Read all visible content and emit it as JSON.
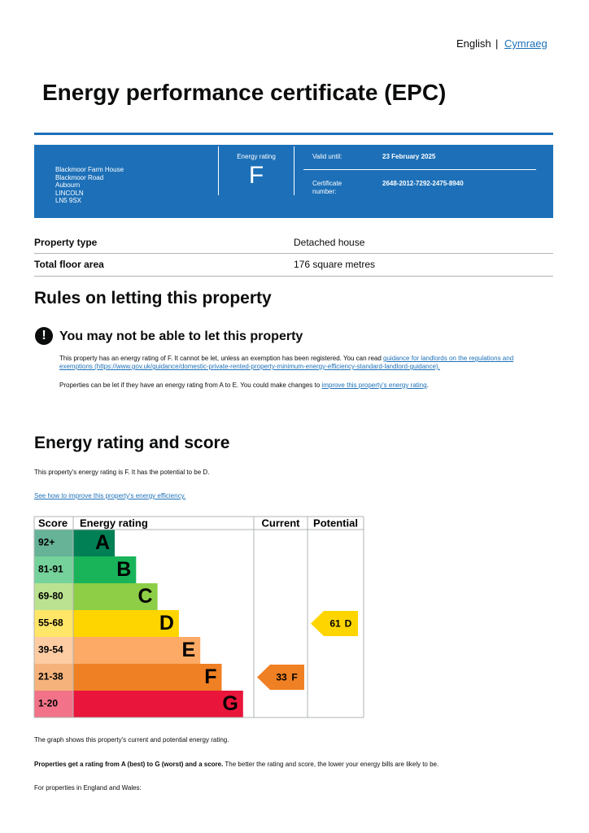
{
  "language": {
    "current": "English",
    "separator": "|",
    "other": "Cymraeg"
  },
  "header": {
    "title": "Energy performance certificate (EPC)"
  },
  "summary": {
    "address": [
      "Blackmoor Farm House",
      "Blackmoor Road",
      "Aubourn",
      "LINCOLN",
      "LN5 9SX"
    ],
    "rating_label": "Energy rating",
    "rating": "F",
    "valid_until_label": "Valid until:",
    "valid_until": "23 February 2025",
    "certificate_label": "Certificate number:",
    "certificate_number": "2648-2012-7292-2475-8940"
  },
  "properties": [
    [
      "Property type",
      "Detached house"
    ],
    [
      "Total floor area",
      "176 square metres"
    ]
  ],
  "letting": {
    "heading": "Rules on letting this property",
    "warning": "You may not be able to let this property",
    "paragraph1": [
      "This property has an energy rating of F. It cannot be let, unless an exemption has been registered. You can read ",
      "guidance for landlords on the regulations and exemptions",
      " (https://www.gov.uk/guidance/domestic-private-rented-property-minimum-energy-efficiency-standard-landlord-guidance)."
    ],
    "paragraph2": [
      "Properties can be let if they have an energy rating from A to E. You could make changes to ",
      "improve this property's energy rating",
      "."
    ]
  },
  "rating_section": {
    "heading": "Energy rating and score",
    "summary": "This property's energy rating is F. It has the potential to be D.",
    "link": "See how to improve this property's energy efficiency."
  },
  "chart": {
    "headers": [
      "Score",
      "Energy rating",
      "Current",
      "Potential"
    ],
    "bands": [
      {
        "score": "92+",
        "letter": "A",
        "color": "#008054"
      },
      {
        "score": "81-91",
        "letter": "B",
        "color": "#19b459"
      },
      {
        "score": "69-80",
        "letter": "C",
        "color": "#8dce46"
      },
      {
        "score": "55-68",
        "letter": "D",
        "color": "#ffd500"
      },
      {
        "score": "39-54",
        "letter": "E",
        "color": "#fcaa65"
      },
      {
        "score": "21-38",
        "letter": "F",
        "color": "#ef8023"
      },
      {
        "score": "1-20",
        "letter": "G",
        "color": "#e9153b"
      }
    ],
    "current": {
      "score": 33,
      "letter": "F"
    },
    "potential": {
      "score": 61,
      "letter": "D"
    }
  },
  "footer": {
    "graph_note": "The graph shows this property's current and potential energy rating.",
    "rating_note": [
      "Properties get a rating from A (best) to G (worst) and a score.",
      " The better the rating and score, the lower your energy bills are likely to be."
    ],
    "region": "For properties in England and Wales:"
  }
}
